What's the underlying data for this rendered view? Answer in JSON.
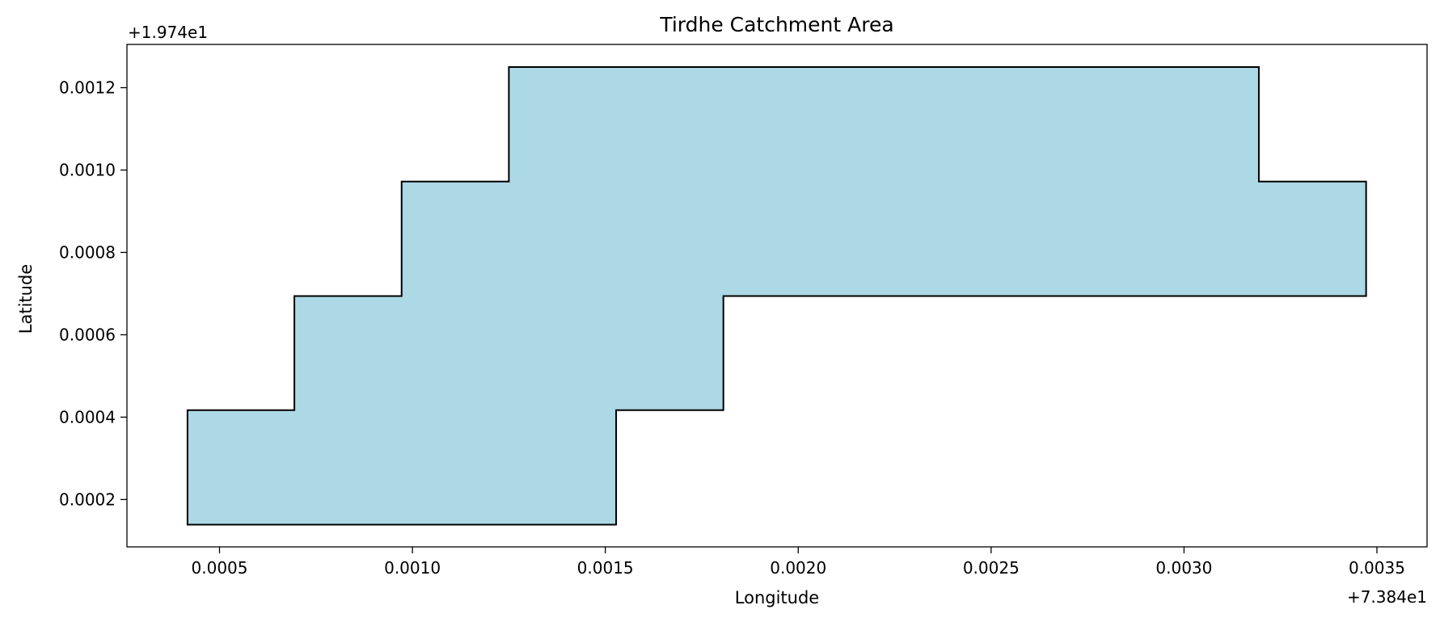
{
  "chart_data": {
    "type": "area",
    "title": "Tirdhe Catchment Area",
    "xlabel": "Longitude",
    "ylabel": "Latitude",
    "x_offset_label": "+7.384e1",
    "y_offset_label": "+1.974e1",
    "xlim": [
      0.00026,
      0.00363
    ],
    "ylim": [
      8.5e-05,
      0.001305
    ],
    "x_ticks": [
      0.0005,
      0.001,
      0.0015,
      0.002,
      0.0025,
      0.003,
      0.0035
    ],
    "x_tick_labels": [
      "0.0005",
      "0.0010",
      "0.0015",
      "0.0020",
      "0.0025",
      "0.0030",
      "0.0035"
    ],
    "y_ticks": [
      0.0002,
      0.0004,
      0.0006,
      0.0008,
      0.001,
      0.0012
    ],
    "y_tick_labels": [
      "0.0002",
      "0.0004",
      "0.0006",
      "0.0008",
      "0.0010",
      "0.0012"
    ],
    "grid": false,
    "series": [
      {
        "x": [
          0.000417,
          0.000417,
          0.000694,
          0.000694,
          0.000972,
          0.000972,
          0.00125,
          0.00125,
          0.003194,
          0.003194,
          0.003472,
          0.003472,
          0.001806,
          0.001806,
          0.001528,
          0.001528,
          0.000417
        ],
        "y": [
          0.000139,
          0.000417,
          0.000417,
          0.000694,
          0.000694,
          0.000972,
          0.000972,
          0.00125,
          0.00125,
          0.000972,
          0.000972,
          0.000694,
          0.000694,
          0.000417,
          0.000417,
          0.000139,
          0.000139
        ]
      }
    ],
    "fill_color": "#add8e6",
    "edge_color": "#000000"
  }
}
